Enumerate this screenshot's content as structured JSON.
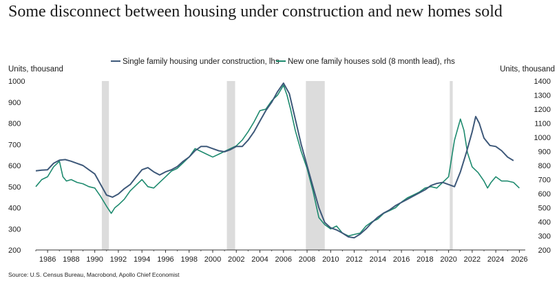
{
  "title": "Some disconnect between housing under construction and new homes sold",
  "source": "Source: U.S. Census Bureau, Macrobond, Apollo Chief Economist",
  "chart_data": {
    "type": "line",
    "left_axis_title": "Units, thousand",
    "right_axis_title": "Units, thousand",
    "xlim": [
      1985,
      2026.5
    ],
    "ylim_left": [
      200,
      1000
    ],
    "ylim_right": [
      200,
      1400
    ],
    "x_ticks": [
      1986,
      1988,
      1990,
      1992,
      1994,
      1996,
      1998,
      2000,
      2002,
      2004,
      2006,
      2008,
      2010,
      2012,
      2014,
      2016,
      2018,
      2020,
      2022,
      2024,
      2026
    ],
    "y_ticks_left": [
      200,
      300,
      400,
      500,
      600,
      700,
      800,
      900,
      1000
    ],
    "y_ticks_right": [
      200,
      300,
      400,
      500,
      600,
      700,
      800,
      900,
      1000,
      1100,
      1200,
      1300,
      1400
    ],
    "legend_position": "top-center",
    "recessions": [
      [
        1990.6,
        1991.2
      ],
      [
        2001.2,
        2001.9
      ],
      [
        2007.9,
        2009.5
      ],
      [
        2020.1,
        2020.35
      ]
    ],
    "series": [
      {
        "name": "Single family housing under construction, lhs",
        "axis": "left",
        "color": "#3d5879",
        "x": [
          1985.0,
          1985.5,
          1986.0,
          1986.5,
          1987.0,
          1987.5,
          1988.0,
          1988.5,
          1989.0,
          1989.5,
          1990.0,
          1990.5,
          1991.0,
          1991.5,
          1992.0,
          1992.5,
          1993.0,
          1993.5,
          1994.0,
          1994.5,
          1995.0,
          1995.5,
          1996.0,
          1996.5,
          1997.0,
          1997.5,
          1998.0,
          1998.5,
          1999.0,
          1999.5,
          2000.0,
          2000.5,
          2001.0,
          2001.5,
          2002.0,
          2002.5,
          2003.0,
          2003.5,
          2004.0,
          2004.5,
          2005.0,
          2005.5,
          2006.0,
          2006.5,
          2007.0,
          2007.5,
          2008.0,
          2008.5,
          2009.0,
          2009.5,
          2010.0,
          2010.5,
          2011.0,
          2011.5,
          2012.0,
          2012.5,
          2013.0,
          2013.5,
          2014.0,
          2014.5,
          2015.0,
          2015.5,
          2016.0,
          2016.5,
          2017.0,
          2017.5,
          2018.0,
          2018.5,
          2019.0,
          2019.5,
          2020.0,
          2020.5,
          2021.0,
          2021.5,
          2022.0,
          2022.3,
          2022.6,
          2023.0,
          2023.5,
          2024.0,
          2024.5,
          2025.0,
          2025.5
        ],
        "y": [
          575,
          578,
          580,
          610,
          625,
          628,
          620,
          610,
          600,
          580,
          560,
          510,
          460,
          450,
          465,
          490,
          510,
          545,
          580,
          590,
          570,
          555,
          570,
          580,
          595,
          620,
          640,
          670,
          690,
          690,
          680,
          670,
          665,
          675,
          690,
          690,
          720,
          760,
          810,
          860,
          900,
          950,
          990,
          940,
          820,
          700,
          600,
          500,
          400,
          330,
          305,
          295,
          280,
          262,
          258,
          275,
          300,
          330,
          355,
          375,
          390,
          410,
          425,
          440,
          455,
          470,
          485,
          505,
          515,
          520,
          510,
          500,
          570,
          660,
          760,
          832,
          800,
          730,
          695,
          690,
          670,
          640,
          623
        ]
      },
      {
        "name": "New one family houses sold (8 month lead), rhs",
        "axis": "right",
        "color": "#1d8a6e",
        "x": [
          1985.0,
          1985.5,
          1986.0,
          1986.5,
          1987.0,
          1987.3,
          1987.6,
          1988.0,
          1988.5,
          1989.0,
          1989.5,
          1990.0,
          1990.5,
          1991.0,
          1991.4,
          1991.7,
          1992.0,
          1992.5,
          1993.0,
          1993.5,
          1994.0,
          1994.5,
          1995.0,
          1995.5,
          1996.0,
          1996.5,
          1997.0,
          1997.5,
          1998.0,
          1998.5,
          1999.0,
          1999.5,
          2000.0,
          2000.5,
          2001.0,
          2001.5,
          2002.0,
          2002.5,
          2003.0,
          2003.5,
          2004.0,
          2004.5,
          2005.0,
          2005.5,
          2006.0,
          2006.3,
          2006.6,
          2007.0,
          2007.5,
          2008.0,
          2008.5,
          2009.0,
          2009.5,
          2010.0,
          2010.5,
          2011.0,
          2011.5,
          2012.0,
          2012.5,
          2013.0,
          2013.5,
          2014.0,
          2014.5,
          2015.0,
          2015.5,
          2016.0,
          2016.5,
          2017.0,
          2017.5,
          2018.0,
          2018.5,
          2019.0,
          2019.5,
          2020.0,
          2020.5,
          2021.0,
          2021.3,
          2021.6,
          2022.0,
          2022.5,
          2023.0,
          2023.3,
          2023.6,
          2024.0,
          2024.5,
          2025.0,
          2025.5,
          2026.0
        ],
        "y": [
          650,
          700,
          720,
          790,
          830,
          720,
          690,
          700,
          680,
          670,
          650,
          640,
          580,
          510,
          460,
          500,
          520,
          560,
          620,
          660,
          700,
          650,
          640,
          680,
          720,
          760,
          780,
          820,
          860,
          920,
          900,
          880,
          860,
          880,
          900,
          920,
          940,
          980,
          1040,
          1110,
          1190,
          1200,
          1260,
          1300,
          1370,
          1300,
          1200,
          1050,
          900,
          780,
          620,
          430,
          380,
          350,
          370,
          320,
          300,
          310,
          320,
          370,
          400,
          420,
          460,
          480,
          500,
          540,
          570,
          590,
          610,
          640,
          650,
          640,
          680,
          720,
          980,
          1130,
          1050,
          890,
          790,
          750,
          690,
          640,
          680,
          720,
          690,
          690,
          680,
          640
        ]
      }
    ]
  },
  "legend": {
    "construction": "Single family housing under construction, lhs",
    "sales": "New one family houses sold (8 month lead), rhs"
  }
}
